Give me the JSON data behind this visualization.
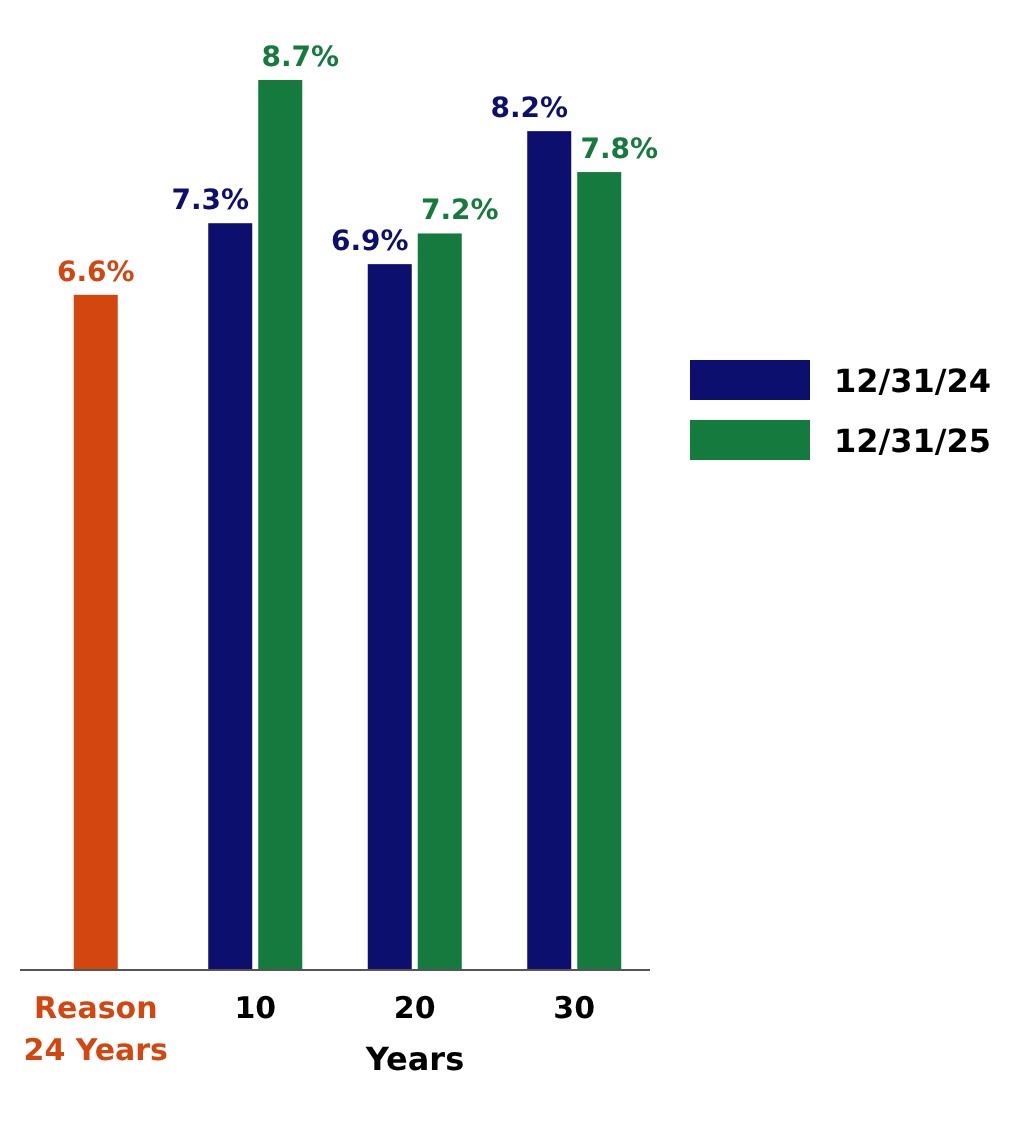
{
  "chart_data": {
    "type": "bar",
    "categories": [
      "Reason\n24 Years",
      "10",
      "20",
      "30"
    ],
    "xlabel": "Years",
    "legend": "right",
    "series": [
      {
        "color": "#d4460f",
        "values": [
          6.6,
          null,
          null,
          null
        ],
        "value_labels": [
          "6.6%",
          null,
          null,
          null
        ]
      },
      {
        "name": "12/31/24",
        "color": "#0d0f6e",
        "values": [
          null,
          7.3,
          6.9,
          8.2
        ],
        "value_labels": [
          null,
          "7.3%",
          "6.9%",
          "8.2%"
        ]
      },
      {
        "name": "12/31/25",
        "color": "#157a3e",
        "values": [
          null,
          8.7,
          7.2,
          7.8
        ],
        "value_labels": [
          null,
          "8.7%",
          "7.2%",
          "7.8%"
        ]
      }
    ]
  }
}
